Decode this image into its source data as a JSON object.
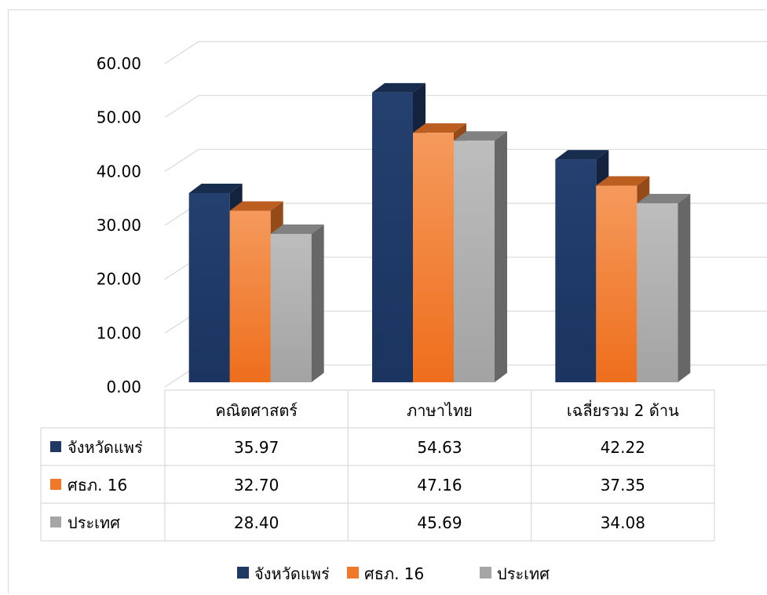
{
  "chart_data": {
    "type": "bar",
    "categories": [
      "คณิตศาสตร์",
      "ภาษาไทย",
      "เฉลี่ยรวม  2 ด้าน"
    ],
    "series": [
      {
        "name": "จังหวัดแพร่",
        "values": [
          35.97,
          54.63,
          42.22
        ],
        "display": [
          "35.97",
          "54.63",
          "42.22"
        ]
      },
      {
        "name": "ศธภ. 16",
        "values": [
          32.7,
          47.16,
          37.35
        ],
        "display": [
          "32.70",
          "47.16",
          "37.35"
        ]
      },
      {
        "name": "ประเทศ",
        "values": [
          28.4,
          45.69,
          34.08
        ],
        "display": [
          "28.40",
          "45.69",
          "34.08"
        ]
      }
    ],
    "ylim": [
      0,
      60
    ],
    "yticks": [
      "0.00",
      "10.00",
      "20.00",
      "30.00",
      "40.00",
      "50.00",
      "60.00"
    ],
    "grid": true,
    "legend_position": "bottom",
    "colors": [
      "#1f3864",
      "#f07828",
      "#a6a6a6"
    ]
  }
}
